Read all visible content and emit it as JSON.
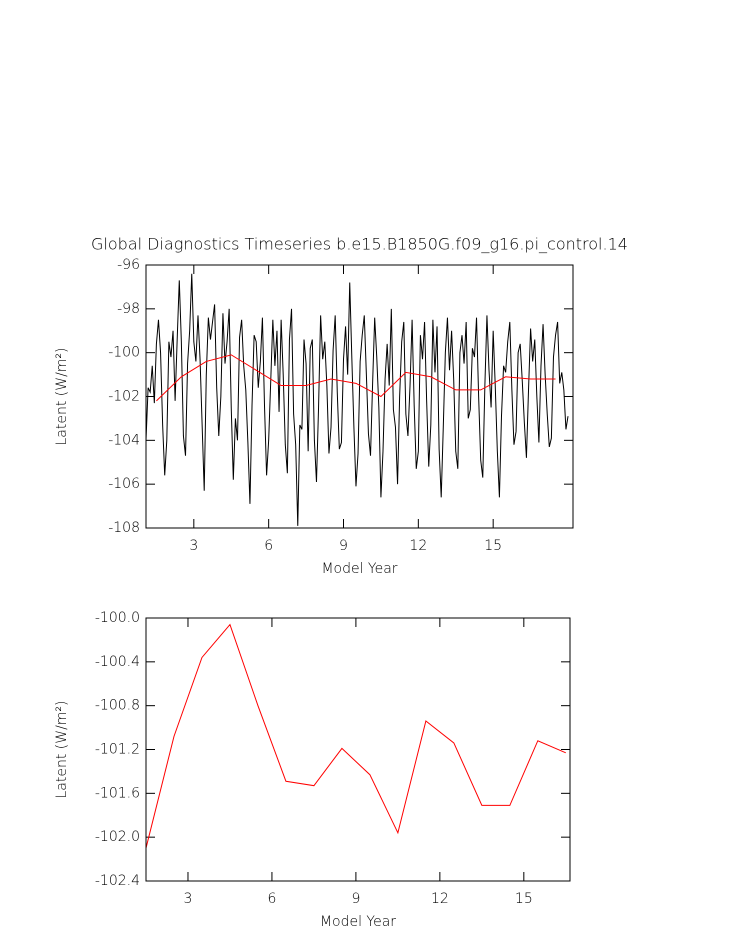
{
  "chart_data": [
    {
      "type": "line",
      "title": "Global Diagnostics Timeseries b.e15.B1850G.f09_g16.pi_control.14",
      "x_label": "Model Year",
      "y_label": "Latent (W/m²)",
      "xlim": [
        1.083,
        18.2
      ],
      "xticks": [
        3,
        6,
        9,
        12,
        15
      ],
      "ylim": [
        -108,
        -96
      ],
      "yticks": [
        -108,
        -106,
        -104,
        -102,
        -100,
        -98,
        -96
      ],
      "series": [
        {
          "color": "#000000",
          "x": [
            1.083,
            1.167,
            1.25,
            1.333,
            1.417,
            1.5,
            1.583,
            1.667,
            1.75,
            1.833,
            1.917,
            2.0,
            2.083,
            2.167,
            2.25,
            2.333,
            2.417,
            2.5,
            2.583,
            2.667,
            2.75,
            2.833,
            2.917,
            3.0,
            3.083,
            3.167,
            3.25,
            3.333,
            3.417,
            3.5,
            3.583,
            3.667,
            3.75,
            3.833,
            3.917,
            4.0,
            4.083,
            4.167,
            4.25,
            4.333,
            4.417,
            4.5,
            4.583,
            4.667,
            4.75,
            4.833,
            4.917,
            5.0,
            5.083,
            5.167,
            5.25,
            5.333,
            5.417,
            5.5,
            5.583,
            5.667,
            5.75,
            5.833,
            5.917,
            6.0,
            6.083,
            6.167,
            6.25,
            6.333,
            6.417,
            6.5,
            6.583,
            6.667,
            6.75,
            6.833,
            6.917,
            7.0,
            7.083,
            7.167,
            7.25,
            7.333,
            7.417,
            7.5,
            7.583,
            7.667,
            7.75,
            7.833,
            7.917,
            8.0,
            8.083,
            8.167,
            8.25,
            8.333,
            8.417,
            8.5,
            8.583,
            8.667,
            8.75,
            8.833,
            8.917,
            9.0,
            9.083,
            9.167,
            9.25,
            9.333,
            9.417,
            9.5,
            9.583,
            9.667,
            9.75,
            9.833,
            9.917,
            10.0,
            10.083,
            10.167,
            10.25,
            10.333,
            10.417,
            10.5,
            10.583,
            10.667,
            10.75,
            10.833,
            10.917,
            11.0,
            11.083,
            11.167,
            11.25,
            11.333,
            11.417,
            11.5,
            11.583,
            11.667,
            11.75,
            11.833,
            11.917,
            12.0,
            12.083,
            12.167,
            12.25,
            12.333,
            12.417,
            12.5,
            12.583,
            12.667,
            12.75,
            12.833,
            12.917,
            13.0,
            13.083,
            13.167,
            13.25,
            13.333,
            13.417,
            13.5,
            13.583,
            13.667,
            13.75,
            13.833,
            13.917,
            14.0,
            14.083,
            14.167,
            14.25,
            14.333,
            14.417,
            14.5,
            14.583,
            14.667,
            14.75,
            14.833,
            14.917,
            15.0,
            15.083,
            15.167,
            15.25,
            15.333,
            15.417,
            15.5,
            15.583,
            15.667,
            15.75,
            15.833,
            15.917,
            16.0,
            16.083,
            16.167,
            16.25,
            16.333,
            16.417,
            16.5,
            16.583,
            16.667,
            16.75,
            16.833,
            16.917,
            17.0,
            17.083,
            17.167,
            17.25,
            17.333,
            17.417,
            17.5,
            17.583,
            17.667,
            17.75,
            17.833,
            17.917,
            18.0
          ],
          "values": [
            -104.0,
            -101.6,
            -101.8,
            -100.6,
            -102.3,
            -99.6,
            -98.5,
            -100.0,
            -103.3,
            -105.6,
            -104.0,
            -99.5,
            -100.2,
            -99.0,
            -102.2,
            -99.4,
            -96.7,
            -99.5,
            -103.8,
            -104.7,
            -100.5,
            -99.0,
            -96.4,
            -99.5,
            -100.4,
            -98.3,
            -100.3,
            -103.3,
            -106.3,
            -101.0,
            -98.4,
            -99.4,
            -98.6,
            -97.8,
            -101.6,
            -103.8,
            -102.0,
            -98.2,
            -100.5,
            -99.5,
            -98.0,
            -102.5,
            -105.8,
            -103.0,
            -104.0,
            -99.3,
            -98.5,
            -100.6,
            -101.7,
            -104.1,
            -106.9,
            -102.4,
            -99.2,
            -99.5,
            -101.6,
            -100.4,
            -98.4,
            -102.4,
            -105.6,
            -104.0,
            -101.3,
            -98.5,
            -100.6,
            -99.0,
            -102.7,
            -98.5,
            -101.0,
            -104.2,
            -105.5,
            -99.4,
            -98.0,
            -102.8,
            -104.2,
            -107.9,
            -103.3,
            -103.5,
            -99.4,
            -100.5,
            -104.5,
            -99.8,
            -99.4,
            -104.0,
            -105.9,
            -102.5,
            -98.3,
            -100.3,
            -99.5,
            -101.5,
            -104.6,
            -103.4,
            -99.9,
            -98.3,
            -101.8,
            -104.4,
            -104.1,
            -100.3,
            -98.8,
            -101.0,
            -96.8,
            -100.2,
            -103.4,
            -106.1,
            -104.6,
            -100.4,
            -99.2,
            -98.3,
            -101.0,
            -103.7,
            -104.7,
            -101.4,
            -98.4,
            -100.2,
            -102.5,
            -106.6,
            -104.5,
            -101.2,
            -99.6,
            -101.5,
            -98.0,
            -102.6,
            -103.4,
            -106.0,
            -102.0,
            -99.5,
            -98.6,
            -102.8,
            -103.8,
            -101.5,
            -98.5,
            -102.4,
            -105.3,
            -104.5,
            -99.2,
            -100.3,
            -98.6,
            -102.2,
            -105.2,
            -103.3,
            -98.5,
            -100.9,
            -98.8,
            -104.4,
            -106.6,
            -103.4,
            -100.0,
            -98.4,
            -100.8,
            -99.0,
            -101.2,
            -104.5,
            -105.3,
            -100.0,
            -99.2,
            -100.5,
            -98.6,
            -103.0,
            -102.6,
            -99.8,
            -100.2,
            -98.4,
            -102.0,
            -104.9,
            -105.7,
            -101.5,
            -98.3,
            -100.8,
            -102.5,
            -99.0,
            -101.5,
            -104.5,
            -106.6,
            -102.9,
            -100.6,
            -100.9,
            -99.5,
            -98.6,
            -101.7,
            -104.2,
            -103.6,
            -100.0,
            -99.6,
            -101.3,
            -103.2,
            -104.8,
            -101.7,
            -98.9,
            -100.4,
            -99.4,
            -102.0,
            -104.1,
            -100.6,
            -98.7,
            -101.0,
            -102.8,
            -104.3,
            -103.9,
            -100.2,
            -99.2,
            -98.6,
            -101.4,
            -100.9,
            -101.7,
            -103.5,
            -102.9
          ]
        },
        {
          "color": "#ff0000",
          "x": [
            1.5,
            2.5,
            3.5,
            4.5,
            5.5,
            6.5,
            7.5,
            8.5,
            9.5,
            10.5,
            11.5,
            12.5,
            13.5,
            14.5,
            15.5,
            16.5,
            17.5
          ],
          "values": [
            -102.2,
            -101.1,
            -100.4,
            -100.1,
            -100.8,
            -101.5,
            -101.5,
            -101.2,
            -101.4,
            -102.0,
            -100.9,
            -101.1,
            -101.7,
            -101.7,
            -101.1,
            -101.2,
            -101.2
          ]
        }
      ]
    },
    {
      "type": "line",
      "x_label": "Model Year",
      "y_label": "Latent (W/m²)",
      "xlim": [
        1.5,
        16.65
      ],
      "xticks": [
        3,
        6,
        9,
        12,
        15
      ],
      "ylim": [
        -102.4,
        -100.0
      ],
      "yticks": [
        {
          "value": -102.4,
          "label": "-102.4"
        },
        {
          "value": -102.0,
          "label": "-102.0"
        },
        -101.6,
        -101.2,
        -100.8,
        -100.4,
        {
          "value": -100.0,
          "label": "-100.0"
        }
      ],
      "series": [
        {
          "color": "#ff0000",
          "x": [
            1.5,
            2.5,
            3.5,
            4.5,
            5.5,
            6.5,
            7.5,
            8.5,
            9.5,
            10.5,
            11.5,
            12.5,
            13.5,
            14.5,
            15.5,
            16.5
          ],
          "values": [
            -102.1,
            -101.08,
            -100.36,
            -100.06,
            -100.8,
            -101.49,
            -101.53,
            -101.19,
            -101.43,
            -101.96,
            -100.94,
            -101.14,
            -101.71,
            -101.71,
            -101.12,
            -101.23
          ]
        }
      ]
    }
  ]
}
